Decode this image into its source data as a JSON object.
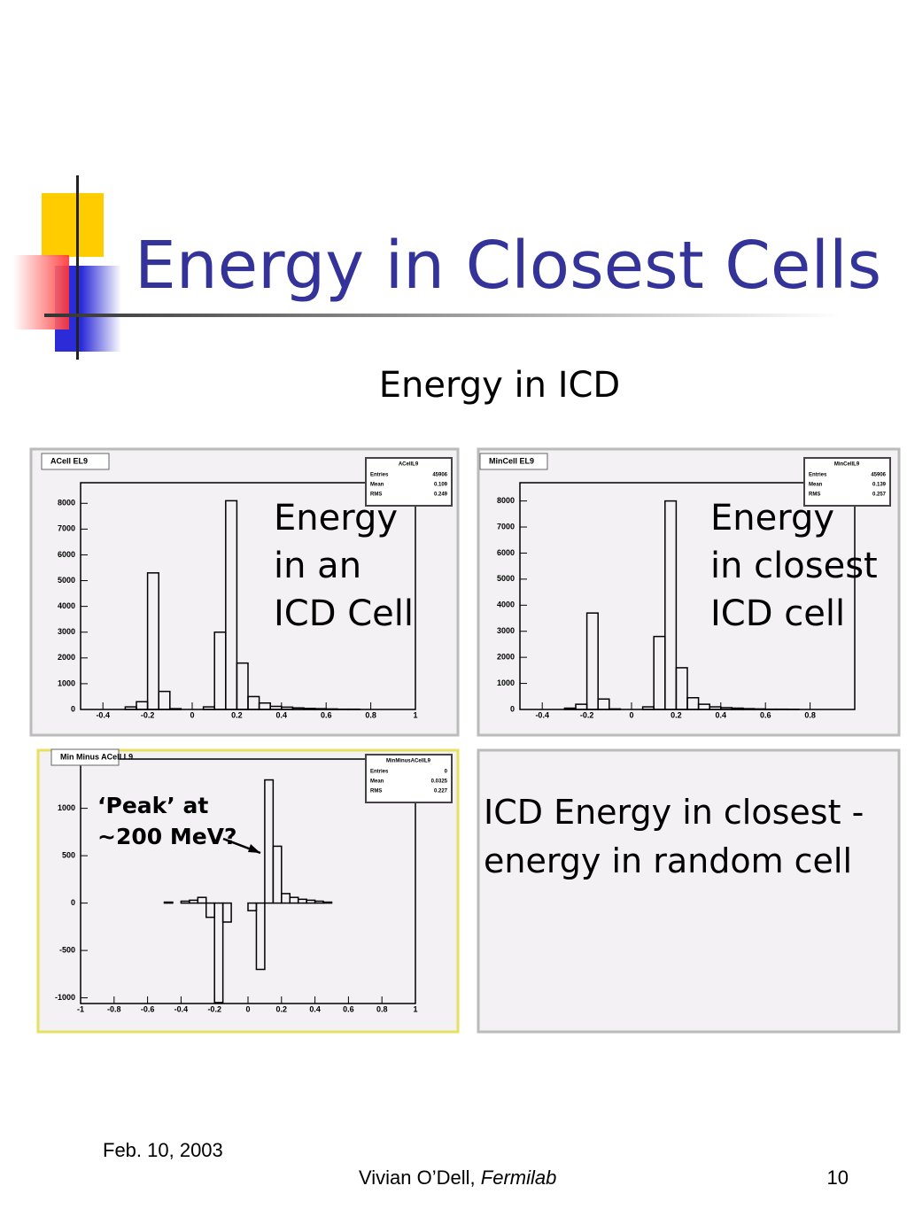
{
  "slide": {
    "title": "Energy in Closest Cells",
    "subtitle": "Energy in ICD",
    "date": "Feb. 10, 2003",
    "author": "Vivian O’Dell, ",
    "organization": "Fermilab",
    "page_number": "10"
  },
  "panel_text": [
    "ICD Energy in closest -",
    "energy in random cell"
  ],
  "chart_data": [
    {
      "type": "histogram",
      "title": "ACell EL9",
      "stats_name": "ACellL9",
      "stats_labels": [
        "Entries",
        "Mean",
        "RMS"
      ],
      "stats_values": [
        45906,
        0.109,
        0.249
      ],
      "annotation": [
        "Energy",
        "in an",
        "ICD Cell"
      ],
      "bins": [
        -0.5,
        -0.45,
        -0.4,
        -0.35,
        -0.3,
        -0.25,
        -0.2,
        -0.15,
        -0.1,
        -0.05,
        0,
        0.05,
        0.1,
        0.15,
        0.2,
        0.25,
        0.3,
        0.35,
        0.4,
        0.45,
        0.5,
        0.55,
        0.6,
        0.65,
        0.7,
        0.75,
        0.8,
        0.85,
        0.9,
        0.95,
        1.0
      ],
      "values": [
        0,
        0,
        0,
        0,
        100,
        300,
        5300,
        700,
        30,
        0,
        0,
        100,
        3000,
        8100,
        1800,
        500,
        250,
        120,
        90,
        60,
        40,
        30,
        20,
        10,
        10,
        0,
        0,
        0,
        0,
        0
      ],
      "color": "#000000",
      "xlim": [
        -0.5,
        1.0
      ],
      "xticks": [
        -0.4,
        -0.2,
        0,
        0.2,
        0.4,
        0.6,
        0.8,
        1
      ],
      "ylim": [
        0,
        8800
      ],
      "yticks": [
        0,
        1000,
        2000,
        3000,
        4000,
        5000,
        6000,
        7000,
        8000
      ]
    },
    {
      "type": "histogram",
      "title": "MinCell EL9",
      "stats_name": "MinCellL9",
      "stats_labels": [
        "Entries",
        "Mean",
        "RMS"
      ],
      "stats_values": [
        45906,
        0.139,
        0.257
      ],
      "annotation": [
        "Energy",
        "in closest",
        "ICD cell"
      ],
      "bins": [
        -0.5,
        -0.45,
        -0.4,
        -0.35,
        -0.3,
        -0.25,
        -0.2,
        -0.15,
        -0.1,
        -0.05,
        0,
        0.05,
        0.1,
        0.15,
        0.2,
        0.25,
        0.3,
        0.35,
        0.4,
        0.45,
        0.5,
        0.55,
        0.6,
        0.65,
        0.7,
        0.75,
        0.8,
        0.85,
        0.9,
        0.95,
        1.0
      ],
      "values": [
        0,
        0,
        0,
        0,
        50,
        200,
        3700,
        400,
        20,
        0,
        0,
        100,
        2800,
        8000,
        1600,
        450,
        200,
        100,
        70,
        50,
        30,
        20,
        10,
        10,
        5,
        0,
        0,
        0,
        0,
        0
      ],
      "color": "#000000",
      "xlim": [
        -0.5,
        1.0
      ],
      "xticks": [
        -0.4,
        -0.2,
        0,
        0.2,
        0.4,
        0.6,
        0.8
      ],
      "ylim": [
        0,
        8700
      ],
      "yticks": [
        0,
        1000,
        2000,
        3000,
        4000,
        5000,
        6000,
        7000,
        8000
      ]
    },
    {
      "type": "histogram",
      "title": "Min Minus ACell L9",
      "stats_name": "MinMinusACellL9",
      "stats_labels": [
        "Entries",
        "Mean",
        "RMS"
      ],
      "stats_values": [
        0,
        0.0325,
        0.227
      ],
      "annotation": [
        "‘Peak’ at",
        "~200 MeV?"
      ],
      "bins": [
        -1,
        -0.95,
        -0.9,
        -0.85,
        -0.8,
        -0.75,
        -0.7,
        -0.65,
        -0.6,
        -0.55,
        -0.5,
        -0.45,
        -0.4,
        -0.35,
        -0.3,
        -0.25,
        -0.2,
        -0.15,
        -0.1,
        -0.05,
        0,
        0.05,
        0.1,
        0.15,
        0.2,
        0.25,
        0.3,
        0.35,
        0.4,
        0.45,
        0.5,
        0.55,
        0.6,
        0.65,
        0.7,
        0.75,
        0.8,
        0.85,
        0.9,
        0.95,
        1
      ],
      "values": [
        0,
        0,
        0,
        0,
        0,
        0,
        0,
        0,
        0,
        0,
        10,
        0,
        20,
        30,
        60,
        -150,
        -1050,
        -200,
        0,
        0,
        -80,
        -700,
        1300,
        600,
        100,
        60,
        40,
        30,
        20,
        10,
        0,
        0,
        0,
        0,
        0,
        0,
        0,
        0,
        0,
        0
      ],
      "color": "#000000",
      "xlim": [
        -1,
        1
      ],
      "xticks": [
        -1,
        -0.8,
        -0.6,
        -0.4,
        -0.2,
        0,
        0.2,
        0.4,
        0.6,
        0.8,
        1
      ],
      "ylim": [
        -1060,
        1520
      ],
      "yticks": [
        -1000,
        -500,
        0,
        500,
        1000
      ]
    }
  ]
}
